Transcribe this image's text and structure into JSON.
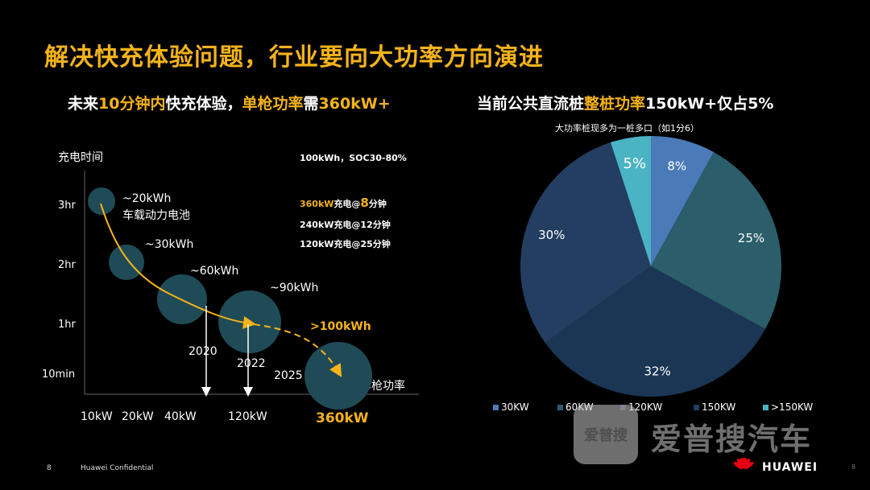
{
  "title": "解决快充体验问题，行业要向大功率方向演进",
  "left_heading": {
    "p1": "未来",
    "p2": "10分钟内",
    "p3": "快充体验，",
    "p4": "单枪功率",
    "p5": "需",
    "p6": "360kW+"
  },
  "right_heading": {
    "p1": "当前公共直流桩",
    "p2": "整桩功率",
    "p3": "150kW+仅占5%"
  },
  "pie_subtitle": "大功率桩现多为一桩多口（如1分6）",
  "specs": {
    "battery": "100kWh，SOC30-80%",
    "line1_a": "360kW",
    "line1_b": "充电@",
    "line1_c": "8",
    "line1_d": "分钟",
    "line2": "240kW充电@12分钟",
    "line3": "120kW充电@25分钟"
  },
  "left_chart": {
    "y_axis_title": "充电时间",
    "x_axis_title": "单枪功率",
    "y_ticks": [
      "3hr",
      "2hr",
      "1hr",
      "10min"
    ],
    "x_ticks": [
      "10kW",
      "20kW",
      "40kW",
      "120kW",
      "360kW"
    ],
    "bubbles": [
      {
        "label": "~20kWh",
        "sublabel": "车载动力电池"
      },
      {
        "label": "~30kWh"
      },
      {
        "label": "~60kWh"
      },
      {
        "label": "~90kWh"
      },
      {
        "label": ">100kWh"
      }
    ],
    "years": [
      "2020",
      "2022",
      "2025"
    ]
  },
  "chart_data": {
    "type": "pie",
    "title": "当前公共直流桩整桩功率150kW+仅占5%",
    "subtitle": "大功率桩现多为一桩多口（如1分6）",
    "categories": [
      "30KW",
      "60KW",
      "120KW",
      "150KW",
      ">150KW"
    ],
    "values": [
      8,
      25,
      32,
      30,
      5
    ],
    "labels": [
      "8%",
      "25%",
      "32%",
      "30%",
      "5%"
    ],
    "colors": [
      "#4a7ab8",
      "#2b5d6a",
      "#1b3654",
      "#233e60",
      "#4ab3c4"
    ],
    "legend_position": "bottom"
  },
  "footer": {
    "page": "8",
    "confidential": "Huawei Confidential",
    "brand": "HUAWEI",
    "page_dot": "8"
  },
  "watermark": {
    "box": "爱普搜",
    "text": "爱普搜汽车"
  }
}
